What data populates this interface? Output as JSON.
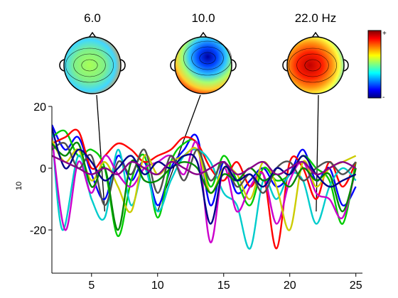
{
  "chart_data": {
    "type": "line",
    "title": "",
    "xlabel": "",
    "ylabel": "10",
    "xlim": [
      2,
      25.5
    ],
    "ylim": [
      -34,
      20
    ],
    "x_ticks": [
      "5",
      "10",
      "15",
      "20",
      "25"
    ],
    "y_ticks": [
      "20",
      "0",
      "-20"
    ],
    "grid": false,
    "topomaps": [
      {
        "label": "6.0",
        "freq": 6.0,
        "pattern": "mixed"
      },
      {
        "label": "10.0",
        "freq": 10.0,
        "pattern": "negative"
      },
      {
        "label": "22.0 Hz",
        "freq": 22.0,
        "pattern": "positive"
      }
    ],
    "colorbar": {
      "max_label": "+",
      "min_label": "-"
    },
    "series": [
      {
        "color": "#0000ff",
        "anchors": [
          [
            2,
            14
          ],
          [
            3,
            6
          ],
          [
            4,
            10
          ],
          [
            5,
            -2
          ],
          [
            6,
            -10
          ],
          [
            7,
            4
          ],
          [
            8,
            -4
          ],
          [
            9,
            2
          ],
          [
            10,
            -12
          ],
          [
            11,
            0
          ],
          [
            12,
            6
          ],
          [
            13,
            10
          ],
          [
            14,
            -12
          ],
          [
            15,
            2
          ],
          [
            16,
            -8
          ],
          [
            17,
            -4
          ],
          [
            18,
            0
          ],
          [
            19,
            -6
          ],
          [
            20,
            -2
          ],
          [
            21,
            6
          ],
          [
            22,
            -4
          ],
          [
            23,
            0
          ],
          [
            24,
            -12
          ],
          [
            25,
            -6
          ]
        ]
      },
      {
        "color": "#00cc00",
        "anchors": [
          [
            2,
            10
          ],
          [
            3,
            12
          ],
          [
            4,
            4
          ],
          [
            5,
            6
          ],
          [
            6,
            0
          ],
          [
            7,
            -22
          ],
          [
            8,
            -4
          ],
          [
            9,
            4
          ],
          [
            10,
            -16
          ],
          [
            11,
            2
          ],
          [
            12,
            8
          ],
          [
            13,
            8
          ],
          [
            14,
            -6
          ],
          [
            15,
            4
          ],
          [
            16,
            -4
          ],
          [
            17,
            -12
          ],
          [
            18,
            0
          ],
          [
            19,
            -4
          ],
          [
            20,
            -2
          ],
          [
            21,
            4
          ],
          [
            22,
            0
          ],
          [
            23,
            -4
          ],
          [
            24,
            -18
          ],
          [
            25,
            2
          ]
        ]
      },
      {
        "color": "#ff0000",
        "anchors": [
          [
            2,
            8
          ],
          [
            3,
            10
          ],
          [
            4,
            12
          ],
          [
            5,
            0
          ],
          [
            6,
            4
          ],
          [
            7,
            8
          ],
          [
            8,
            6
          ],
          [
            9,
            2
          ],
          [
            10,
            4
          ],
          [
            11,
            6
          ],
          [
            12,
            10
          ],
          [
            13,
            8
          ],
          [
            14,
            0
          ],
          [
            15,
            -4
          ],
          [
            16,
            2
          ],
          [
            17,
            -6
          ],
          [
            18,
            -2
          ],
          [
            19,
            -26
          ],
          [
            20,
            2
          ],
          [
            21,
            0
          ],
          [
            22,
            -10
          ],
          [
            23,
            2
          ],
          [
            24,
            -6
          ],
          [
            25,
            2
          ]
        ]
      },
      {
        "color": "#00cccc",
        "anchors": [
          [
            2,
            12
          ],
          [
            2.8,
            -20
          ],
          [
            4,
            4
          ],
          [
            5,
            -10
          ],
          [
            6,
            -16
          ],
          [
            7,
            6
          ],
          [
            8,
            -12
          ],
          [
            9,
            0
          ],
          [
            10,
            -14
          ],
          [
            11,
            -4
          ],
          [
            12,
            4
          ],
          [
            13,
            6
          ],
          [
            14,
            2
          ],
          [
            15,
            -8
          ],
          [
            16,
            -12
          ],
          [
            17,
            -26
          ],
          [
            18,
            -4
          ],
          [
            19,
            -10
          ],
          [
            20,
            -2
          ],
          [
            21,
            -4
          ],
          [
            22,
            -18
          ],
          [
            23,
            -6
          ],
          [
            24,
            0
          ],
          [
            25,
            -4
          ]
        ]
      },
      {
        "color": "#cc00cc",
        "anchors": [
          [
            2,
            10
          ],
          [
            3,
            -20
          ],
          [
            4,
            2
          ],
          [
            5,
            -8
          ],
          [
            6,
            4
          ],
          [
            7,
            -2
          ],
          [
            8,
            -6
          ],
          [
            9,
            0
          ],
          [
            10,
            2
          ],
          [
            11,
            4
          ],
          [
            12,
            -2
          ],
          [
            13,
            8
          ],
          [
            14,
            -24
          ],
          [
            15,
            0
          ],
          [
            16,
            -14
          ],
          [
            17,
            -6
          ],
          [
            18,
            -2
          ],
          [
            19,
            -18
          ],
          [
            20,
            -4
          ],
          [
            21,
            2
          ],
          [
            22,
            -8
          ],
          [
            23,
            -10
          ],
          [
            24,
            -16
          ],
          [
            25,
            0
          ]
        ]
      },
      {
        "color": "#cccc00",
        "anchors": [
          [
            2,
            9
          ],
          [
            3,
            2
          ],
          [
            4,
            6
          ],
          [
            5,
            -4
          ],
          [
            6,
            2
          ],
          [
            7,
            -6
          ],
          [
            8,
            -14
          ],
          [
            9,
            4
          ],
          [
            10,
            -2
          ],
          [
            11,
            2
          ],
          [
            12,
            4
          ],
          [
            13,
            6
          ],
          [
            14,
            -8
          ],
          [
            15,
            0
          ],
          [
            16,
            -2
          ],
          [
            17,
            -10
          ],
          [
            18,
            2
          ],
          [
            19,
            -6
          ],
          [
            20,
            -20
          ],
          [
            21,
            2
          ],
          [
            22,
            -6
          ],
          [
            23,
            0
          ],
          [
            24,
            2
          ],
          [
            25,
            4
          ]
        ]
      },
      {
        "color": "#505050",
        "anchors": [
          [
            2,
            6
          ],
          [
            3,
            8
          ],
          [
            4,
            0
          ],
          [
            5,
            4
          ],
          [
            6,
            -12
          ],
          [
            7,
            2
          ],
          [
            8,
            -2
          ],
          [
            9,
            6
          ],
          [
            10,
            -8
          ],
          [
            11,
            4
          ],
          [
            12,
            -4
          ],
          [
            13,
            6
          ],
          [
            14,
            -4
          ],
          [
            15,
            2
          ],
          [
            16,
            -6
          ],
          [
            17,
            -2
          ],
          [
            18,
            -8
          ],
          [
            19,
            0
          ],
          [
            20,
            2
          ],
          [
            21,
            -4
          ],
          [
            22,
            0
          ],
          [
            23,
            2
          ],
          [
            24,
            -2
          ],
          [
            25,
            2
          ]
        ]
      },
      {
        "color": "#008800",
        "anchors": [
          [
            2,
            8
          ],
          [
            3,
            4
          ],
          [
            4,
            8
          ],
          [
            5,
            -6
          ],
          [
            6,
            0
          ],
          [
            7,
            -20
          ],
          [
            8,
            2
          ],
          [
            9,
            -4
          ],
          [
            10,
            -4
          ],
          [
            11,
            0
          ],
          [
            12,
            2
          ],
          [
            13,
            0
          ],
          [
            14,
            -8
          ],
          [
            15,
            -2
          ],
          [
            16,
            -4
          ],
          [
            17,
            0
          ],
          [
            18,
            -4
          ],
          [
            19,
            -2
          ],
          [
            20,
            -6
          ],
          [
            21,
            0
          ],
          [
            22,
            -4
          ],
          [
            23,
            -2
          ],
          [
            24,
            -14
          ],
          [
            25,
            0
          ]
        ]
      },
      {
        "color": "#000088",
        "anchors": [
          [
            2,
            13
          ],
          [
            3,
            0
          ],
          [
            4,
            6
          ],
          [
            5,
            2
          ],
          [
            6,
            -4
          ],
          [
            7,
            0
          ],
          [
            8,
            4
          ],
          [
            9,
            -2
          ],
          [
            10,
            2
          ],
          [
            11,
            0
          ],
          [
            12,
            4
          ],
          [
            13,
            2
          ],
          [
            14,
            -18
          ],
          [
            15,
            0
          ],
          [
            16,
            -4
          ],
          [
            17,
            -2
          ],
          [
            18,
            -6
          ],
          [
            19,
            0
          ],
          [
            20,
            -2
          ],
          [
            21,
            4
          ],
          [
            22,
            -2
          ],
          [
            23,
            -6
          ],
          [
            24,
            -4
          ],
          [
            25,
            -2
          ]
        ]
      },
      {
        "color": "#880088",
        "anchors": [
          [
            2,
            4
          ],
          [
            3,
            2
          ],
          [
            4,
            0
          ],
          [
            5,
            -2
          ],
          [
            6,
            0
          ],
          [
            7,
            -2
          ],
          [
            8,
            2
          ],
          [
            9,
            0
          ],
          [
            10,
            -2
          ],
          [
            11,
            2
          ],
          [
            12,
            0
          ],
          [
            13,
            -2
          ],
          [
            14,
            0
          ],
          [
            15,
            2
          ],
          [
            16,
            -2
          ],
          [
            17,
            0
          ],
          [
            18,
            2
          ],
          [
            19,
            -2
          ],
          [
            20,
            0
          ],
          [
            21,
            2
          ],
          [
            22,
            -2
          ],
          [
            23,
            0
          ],
          [
            24,
            2
          ],
          [
            25,
            0
          ]
        ]
      }
    ]
  }
}
